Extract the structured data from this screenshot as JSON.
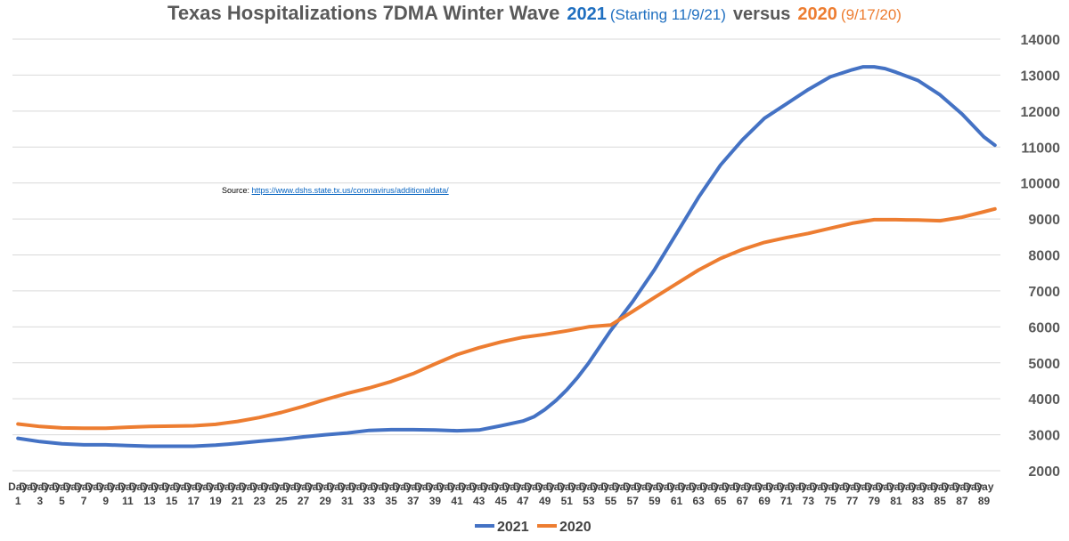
{
  "title": {
    "main": "Texas Hospitalizations 7DMA Winter Wave",
    "year_2021": "2021",
    "note_2021": "(Starting 11/9/21)",
    "versus": "versus",
    "year_2020": "2020",
    "note_2020": "(9/17/20)"
  },
  "source": {
    "label": "Source:",
    "link_text": "https://www.dshs.state.tx.us/coronavirus/additionaldata/"
  },
  "chart_data": {
    "type": "line",
    "y_ticks": [
      "2000",
      "3000",
      "4000",
      "5000",
      "6000",
      "7000",
      "8000",
      "9000",
      "10000",
      "11000",
      "12000",
      "13000",
      "14000"
    ],
    "ylim": [
      2000,
      14000
    ],
    "grid": true,
    "legend_position": "bottom",
    "x_days": [
      1,
      3,
      5,
      7,
      9,
      11,
      13,
      15,
      17,
      19,
      21,
      23,
      25,
      27,
      29,
      31,
      33,
      35,
      37,
      39,
      41,
      43,
      45,
      47,
      49,
      51,
      53,
      55,
      57,
      59,
      61,
      63,
      65,
      67,
      69,
      71,
      73,
      75,
      77,
      79,
      81,
      83,
      85,
      87,
      89
    ],
    "x_tick_word": "Day",
    "series": [
      {
        "name": "2021",
        "color": "#4472C4",
        "days": [
          1,
          3,
          5,
          7,
          9,
          11,
          13,
          15,
          17,
          19,
          21,
          23,
          25,
          27,
          29,
          31,
          33,
          35,
          37,
          39,
          41,
          43,
          45,
          47,
          48,
          49,
          50,
          51,
          52,
          53,
          54,
          55,
          56,
          57,
          59,
          61,
          63,
          65,
          67,
          69,
          71,
          73,
          75,
          77,
          78,
          79,
          80,
          81,
          83,
          85,
          87,
          89,
          90
        ],
        "values": [
          2900,
          2810,
          2750,
          2720,
          2720,
          2700,
          2680,
          2680,
          2680,
          2710,
          2760,
          2820,
          2870,
          2940,
          3000,
          3050,
          3120,
          3140,
          3140,
          3130,
          3110,
          3130,
          3250,
          3380,
          3500,
          3700,
          3950,
          4250,
          4600,
          5000,
          5450,
          5900,
          6300,
          6700,
          7600,
          8600,
          9600,
          10500,
          11200,
          11800,
          12200,
          12600,
          12950,
          13150,
          13230,
          13230,
          13180,
          13080,
          12850,
          12450,
          11920,
          11280,
          11050
        ]
      },
      {
        "name": "2020",
        "color": "#ED7D31",
        "days": [
          1,
          3,
          5,
          7,
          9,
          11,
          13,
          15,
          17,
          19,
          21,
          23,
          25,
          27,
          29,
          31,
          33,
          35,
          37,
          39,
          41,
          43,
          45,
          47,
          49,
          51,
          53,
          55,
          57,
          59,
          61,
          63,
          65,
          67,
          69,
          71,
          73,
          75,
          77,
          79,
          81,
          83,
          85,
          87,
          89,
          90
        ],
        "values": [
          3300,
          3230,
          3190,
          3180,
          3180,
          3210,
          3230,
          3240,
          3250,
          3290,
          3370,
          3480,
          3620,
          3790,
          3980,
          4150,
          4300,
          4480,
          4700,
          4970,
          5230,
          5420,
          5580,
          5710,
          5790,
          5890,
          6000,
          6050,
          6430,
          6820,
          7200,
          7580,
          7900,
          8150,
          8350,
          8480,
          8600,
          8740,
          8880,
          8980,
          8980,
          8970,
          8950,
          9050,
          9200,
          9280
        ]
      }
    ]
  }
}
